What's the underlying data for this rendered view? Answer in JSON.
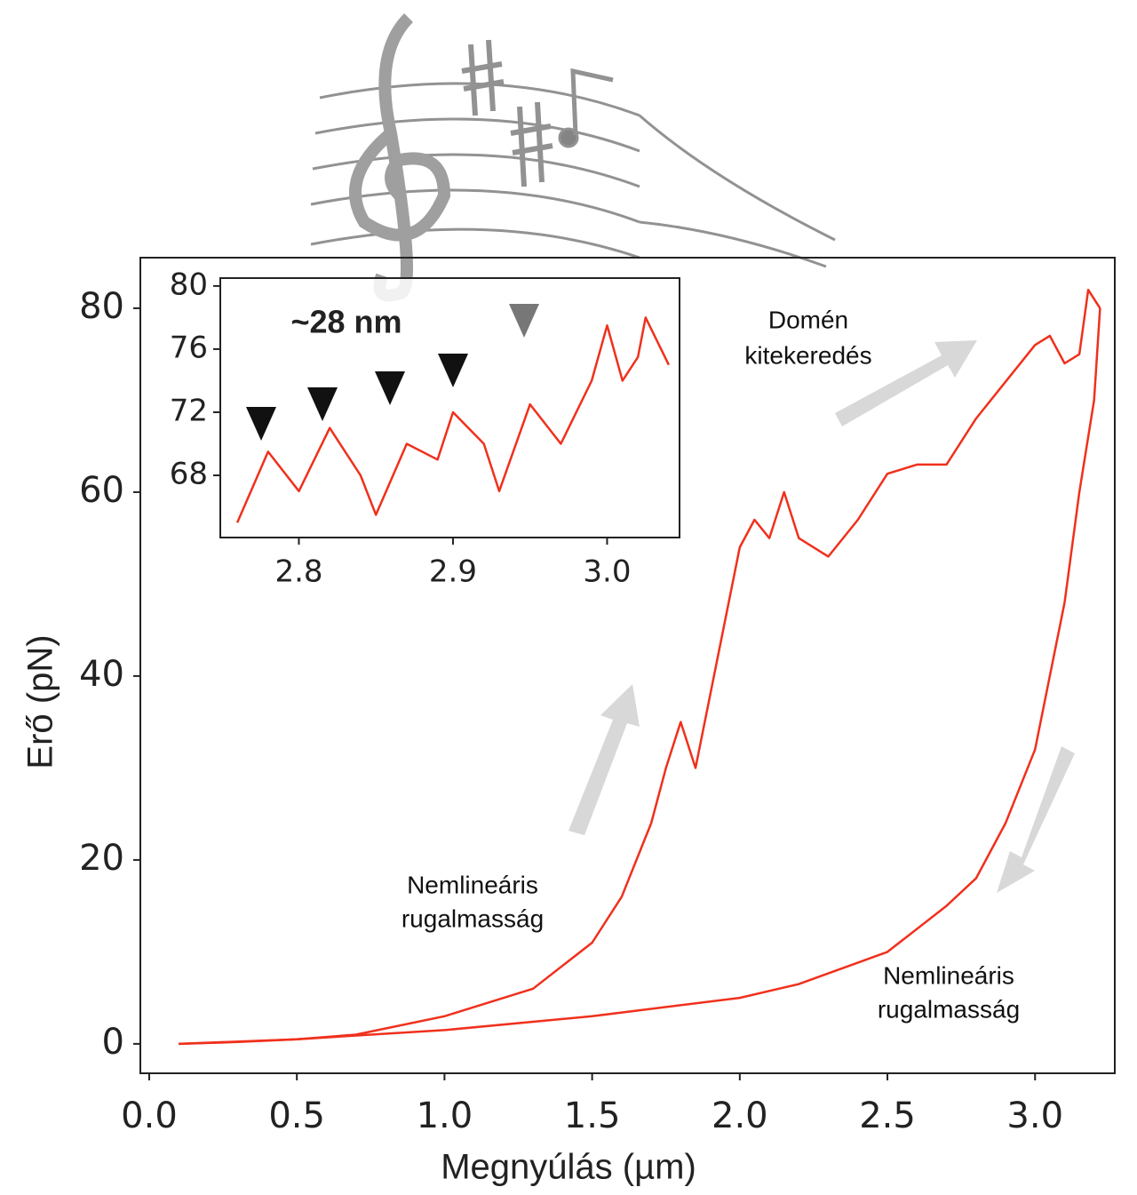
{
  "chart_data": [
    {
      "type": "line",
      "x_label": "Megnyúlás (µm)",
      "y_label": "Erő (pN)",
      "xlim": [
        -0.03,
        3.27
      ],
      "ylim": [
        -3.2,
        85.5
      ],
      "xticks": [
        {
          "value": 0,
          "label": "0.0"
        },
        0.5,
        {
          "value": 1,
          "label": "1.0"
        },
        1.5,
        {
          "value": 2,
          "label": "2.0"
        },
        2.5,
        {
          "value": 3,
          "label": "3.0"
        }
      ],
      "yticks": [
        0,
        20,
        40,
        60,
        80
      ],
      "annotations": [
        [
          "Domén",
          "kitekeredés"
        ],
        [
          "Nemlineáris",
          "rugalmasság"
        ],
        [
          "Nemlineáris",
          "rugalmasság"
        ]
      ],
      "series": [
        {
          "color": "#f0301c",
          "x": [
            0.1,
            0.3,
            0.5,
            0.7,
            1.0,
            1.3,
            1.5,
            1.6,
            1.7,
            1.75,
            1.8,
            1.85,
            1.9,
            1.95,
            2.0,
            2.05,
            2.1,
            2.15,
            2.2,
            2.3,
            2.4,
            2.5,
            2.6,
            2.7,
            2.8,
            2.9,
            3.0,
            3.05,
            3.1,
            3.15,
            3.18,
            3.22
          ],
          "values": [
            0,
            0.2,
            0.5,
            1,
            3,
            6,
            11,
            16,
            24,
            30,
            35,
            30,
            38,
            46,
            54,
            57,
            55,
            60,
            55,
            53,
            57,
            62,
            63,
            63,
            68,
            72,
            76,
            77,
            74,
            75,
            82,
            80
          ]
        },
        {
          "color": "#f0301c",
          "x": [
            0.1,
            0.5,
            1.0,
            1.5,
            2.0,
            2.2,
            2.5,
            2.7,
            2.8,
            2.9,
            3.0,
            3.1,
            3.15,
            3.2,
            3.22
          ],
          "values": [
            0,
            0.5,
            1.5,
            3,
            5,
            6.5,
            10,
            15,
            18,
            24,
            32,
            48,
            60,
            70,
            80
          ]
        }
      ]
    },
    {
      "type": "line",
      "xlim": [
        2.749,
        3.047
      ],
      "ylim": [
        64.06,
        80.5
      ],
      "xticks": [
        2.8,
        2.9,
        {
          "value": 3,
          "label": "3.0"
        }
      ],
      "yticks": [
        68,
        72,
        76,
        80
      ],
      "annotation": "~28 nm",
      "series": [
        {
          "color": "#f0301c",
          "x": [
            2.76,
            2.78,
            2.8,
            2.82,
            2.84,
            2.85,
            2.87,
            2.89,
            2.9,
            2.92,
            2.93,
            2.95,
            2.97,
            2.99,
            3.0,
            3.01,
            3.02,
            3.025,
            3.04
          ],
          "values": [
            65,
            69.5,
            67,
            71,
            68,
            65.5,
            70,
            69,
            72,
            70,
            67,
            72.5,
            70,
            74,
            77.5,
            74,
            75.5,
            78,
            75
          ]
        }
      ]
    }
  ]
}
